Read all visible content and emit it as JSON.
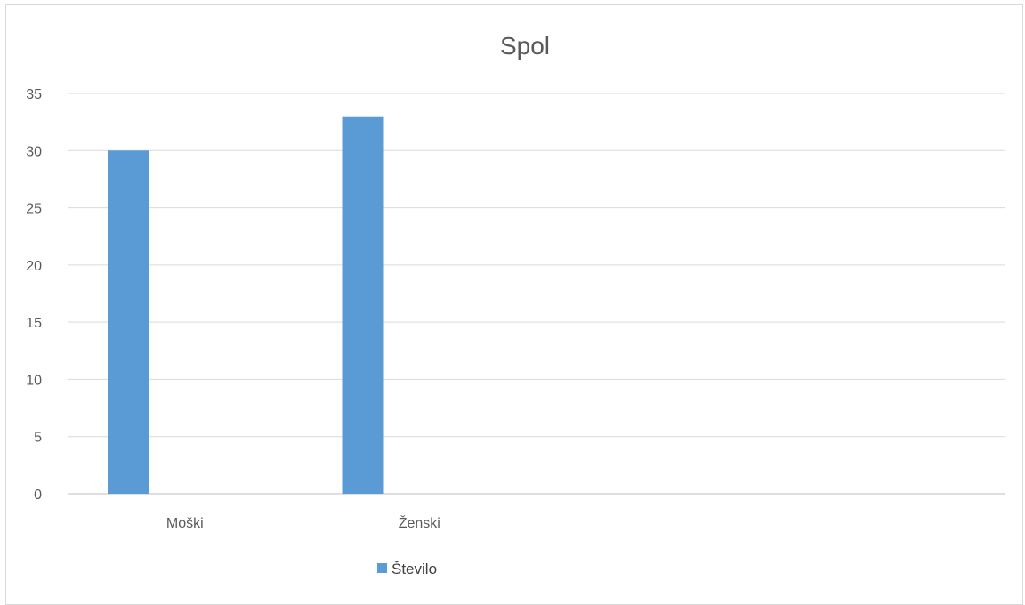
{
  "chart_data": {
    "type": "bar",
    "title": "Spol",
    "xlabel": "",
    "ylabel": "",
    "categories": [
      "Moški",
      "Ženski",
      "",
      ""
    ],
    "series": [
      {
        "name": "Število",
        "values": [
          30,
          33,
          null,
          null
        ],
        "color": "#5b9bd5"
      }
    ],
    "ylim": [
      0,
      35
    ],
    "yticks": [
      0,
      5,
      10,
      15,
      20,
      25,
      30,
      35
    ],
    "grid": true,
    "legend": "bottom"
  }
}
